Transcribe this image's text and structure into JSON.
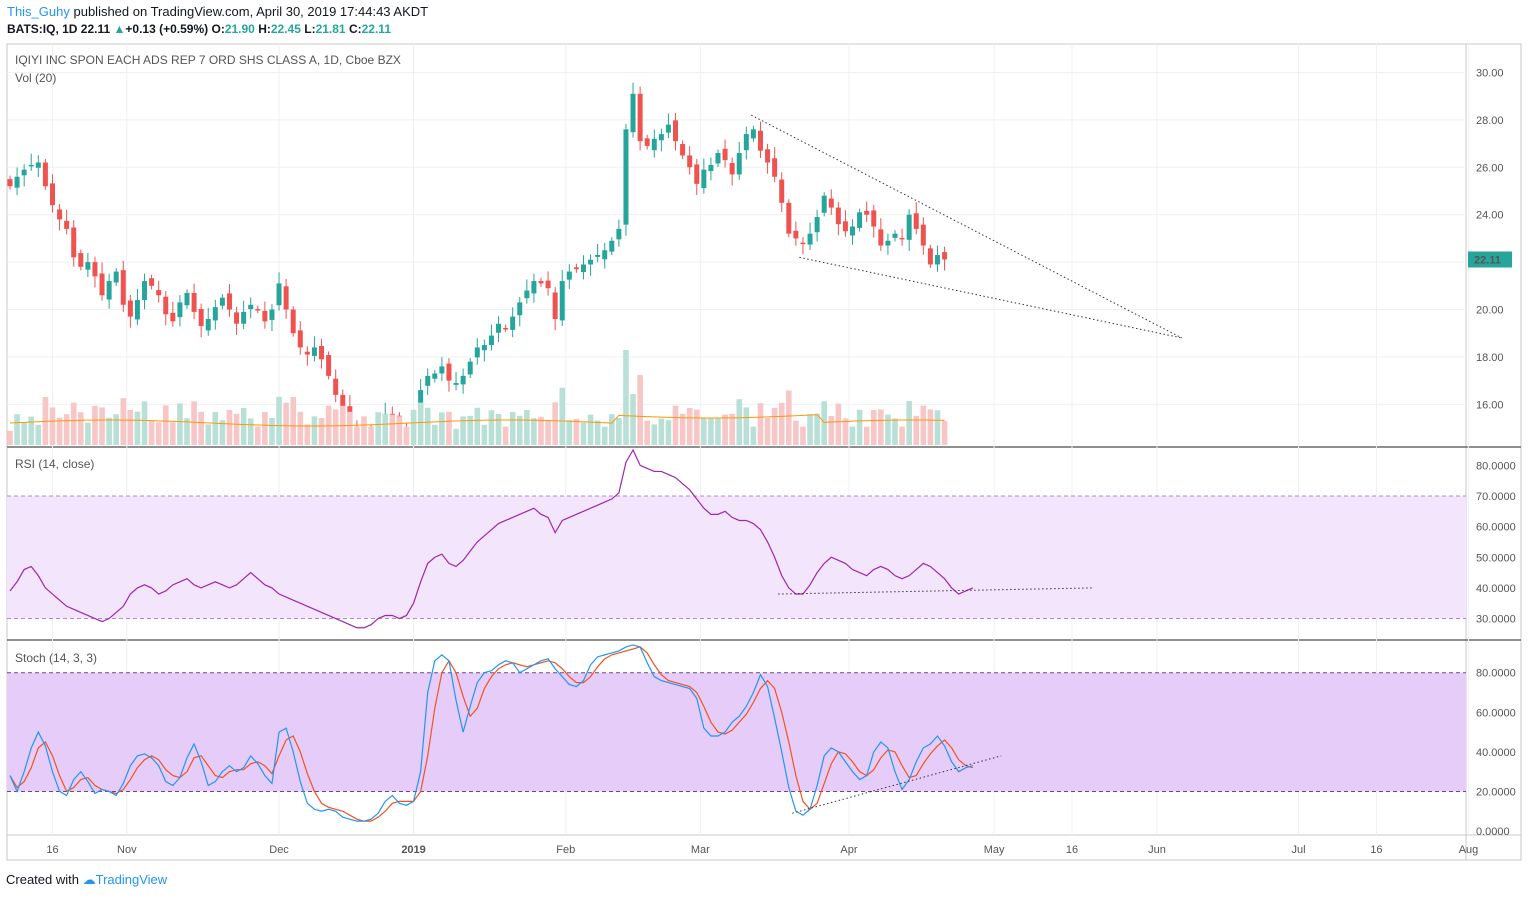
{
  "header": {
    "author": "This_Guhy",
    "published_text": " published on TradingView.com, April 30, 2019 17:44:43 AKDT",
    "symbol_line": "BATS:IQ, 1D",
    "last": "22.11",
    "change_arrow": "▲",
    "change": "+0.13 (+0.59%)",
    "o_label": "O:",
    "o": "21.90",
    "h_label": "H:",
    "h": "22.45",
    "l_label": "L:",
    "l": "21.81",
    "c_label": "C:",
    "c": "22.11"
  },
  "footer": {
    "created": "Created with",
    "brand": "TradingView"
  },
  "colors": {
    "up": "#26a69a",
    "down": "#ef5350",
    "up_vol": "#b9e0d6",
    "down_vol": "#f7c6c7",
    "rsi": "#9c27b0",
    "rsi_band": "#f3e5fb",
    "stoch_band": "#e6ccf8",
    "stoch_k": "#2196f3",
    "stoch_d": "#f4511e",
    "vol_ma": "#ff9800",
    "price_tag": "#26a69a"
  },
  "chart_data": [
    {
      "type": "candlestick",
      "title": "IQIYI INC SPON EACH ADS REP 7 ORD SHS CLASS A, 1D, Cboe BZX",
      "volume_title": "Vol (20)",
      "last_price_label": "22.11",
      "y_ticks": [
        "30.00",
        "28.00",
        "26.00",
        "24.00",
        "22.00",
        "20.00",
        "18.00",
        "16.00"
      ],
      "ylim": [
        14.2,
        31.2
      ],
      "x_ticks": [
        "16",
        "Nov",
        "Dec",
        "2019",
        "Feb",
        "Mar",
        "Apr",
        "May",
        "16",
        "Jun",
        "Jul",
        "16",
        "Aug"
      ],
      "x_tick_index": [
        6,
        16.5,
        38,
        57,
        78.5,
        97.5,
        118.5,
        139,
        150,
        162,
        182,
        193,
        206
      ],
      "close_series": [
        25.2,
        25.6,
        25.9,
        26.1,
        26.2,
        25.2,
        24.4,
        23.8,
        23.4,
        22.2,
        21.8,
        22.0,
        21.4,
        20.6,
        21.2,
        21.6,
        20.2,
        19.7,
        20.4,
        21.2,
        21.0,
        20.6,
        19.8,
        19.5,
        20.3,
        20.7,
        19.9,
        19.3,
        19.6,
        20.1,
        20.5,
        20.0,
        19.4,
        19.9,
        20.2,
        20.0,
        19.5,
        20.0,
        21.1,
        20.0,
        19.0,
        18.4,
        18.1,
        18.4,
        17.9,
        17.2,
        16.4,
        15.8,
        15.2,
        15.0,
        14.7,
        14.6,
        15.0,
        15.6,
        15.4,
        15.0,
        14.8,
        15.4,
        16.6,
        17.2,
        17.3,
        17.6,
        17.0,
        16.9,
        17.2,
        17.8,
        18.4,
        18.5,
        18.9,
        19.4,
        19.2,
        19.7,
        20.3,
        20.8,
        21.2,
        21.1,
        20.9,
        19.6,
        21.2,
        21.6,
        21.7,
        21.9,
        22.1,
        22.3,
        22.5,
        22.9,
        23.4,
        27.6,
        29.1,
        27.1,
        26.9,
        27.2,
        27.4,
        27.8,
        27.1,
        26.5,
        26.0,
        25.3,
        25.9,
        26.1,
        26.6,
        26.3,
        25.7,
        26.6,
        27.4,
        27.6,
        26.7,
        26.2,
        25.6,
        24.5,
        23.2,
        23.0,
        22.8,
        23.2,
        23.9,
        24.8,
        24.3,
        23.6,
        23.3,
        23.5,
        24.1,
        24.0,
        23.5,
        22.7,
        22.9,
        23.2,
        23.0,
        24.0,
        23.4,
        22.7,
        21.9,
        22.3,
        22.11
      ],
      "volume_ma20": 5,
      "drawn_trendlines": [
        "dotted upper line from Mar peak to ~18.8 in Jun",
        "dotted lower line from Apr low to ~18.8 in Jun"
      ]
    },
    {
      "type": "line",
      "title": "RSI (14, close)",
      "y_ticks": [
        "80.0000",
        "70.0000",
        "60.0000",
        "50.0000",
        "40.0000",
        "30.0000"
      ],
      "ylim": [
        23,
        85
      ],
      "band": [
        30,
        70
      ],
      "series": [
        {
          "values": [
            39,
            42,
            46,
            47,
            44,
            40,
            38,
            36,
            34,
            33,
            32,
            31,
            30,
            29,
            30,
            32,
            34,
            38,
            40,
            41,
            40,
            38,
            39,
            41,
            42,
            43,
            41,
            40,
            41,
            42,
            41,
            40,
            41,
            43,
            45,
            43,
            41,
            40,
            38,
            37,
            36,
            35,
            34,
            33,
            32,
            31,
            30,
            29,
            28,
            27,
            27,
            28,
            30,
            31,
            31,
            30,
            31,
            35,
            42,
            48,
            50,
            51,
            48,
            47,
            49,
            52,
            55,
            57,
            59,
            61,
            62,
            63,
            64,
            65,
            66,
            64,
            63,
            58,
            62,
            63,
            64,
            65,
            66,
            67,
            68,
            69,
            71,
            81,
            85,
            80,
            79,
            78,
            78,
            77,
            76,
            74,
            72,
            69,
            66,
            64,
            64,
            65,
            63,
            62,
            62,
            61,
            59,
            55,
            50,
            44,
            40,
            38,
            38,
            41,
            45,
            48,
            50,
            49,
            48,
            46,
            45,
            44,
            46,
            47,
            46,
            44,
            43,
            44,
            46,
            48,
            47,
            45,
            43,
            40,
            38,
            39,
            40
          ]
        }
      ],
      "trendline": "dotted horizontal support near 38-40"
    },
    {
      "type": "line",
      "title": "Stoch (14, 3, 3)",
      "y_ticks": [
        "80.0000",
        "60.0000",
        "40.0000",
        "20.0000",
        "0.0000"
      ],
      "ylim": [
        -2,
        95
      ],
      "band": [
        20,
        80
      ],
      "series": [
        {
          "values": [
            28,
            20,
            30,
            42,
            50,
            43,
            30,
            20,
            18,
            26,
            30,
            25,
            19,
            21,
            20,
            18,
            24,
            33,
            38,
            39,
            37,
            33,
            25,
            23,
            27,
            37,
            44,
            35,
            23,
            25,
            30,
            33,
            30,
            32,
            38,
            34,
            28,
            24,
            50,
            52,
            40,
            25,
            14,
            11,
            10,
            11,
            10,
            7,
            6,
            5,
            5,
            6,
            9,
            15,
            18,
            14,
            13,
            15,
            30,
            70,
            86,
            89,
            86,
            66,
            50,
            63,
            75,
            80,
            81,
            84,
            86,
            85,
            80,
            82,
            84,
            86,
            87,
            82,
            78,
            74,
            73,
            76,
            84,
            88,
            89,
            90,
            91,
            93,
            94,
            93,
            85,
            78,
            76,
            75,
            74,
            73,
            72,
            67,
            52,
            48,
            48,
            50,
            55,
            58,
            63,
            70,
            79,
            73,
            57,
            40,
            22,
            10,
            8,
            11,
            23,
            38,
            42,
            40,
            35,
            30,
            26,
            28,
            40,
            45,
            42,
            30,
            21,
            26,
            35,
            42,
            44,
            48,
            43,
            35,
            30,
            32,
            33
          ]
        },
        {
          "values": [
            28,
            22,
            25,
            32,
            42,
            45,
            38,
            28,
            20,
            22,
            26,
            27,
            23,
            21,
            20,
            19,
            21,
            26,
            32,
            36,
            38,
            36,
            31,
            28,
            27,
            30,
            37,
            38,
            33,
            28,
            27,
            30,
            31,
            31,
            34,
            35,
            33,
            29,
            38,
            46,
            48,
            40,
            29,
            20,
            14,
            12,
            11,
            10,
            8,
            6,
            5,
            5,
            7,
            10,
            14,
            15,
            15,
            15,
            20,
            38,
            62,
            80,
            86,
            80,
            68,
            58,
            62,
            72,
            78,
            82,
            84,
            85,
            84,
            83,
            84,
            85,
            86,
            85,
            82,
            78,
            75,
            75,
            78,
            83,
            87,
            89,
            90,
            91,
            92,
            93,
            90,
            84,
            79,
            76,
            75,
            74,
            73,
            70,
            63,
            55,
            50,
            49,
            51,
            55,
            59,
            65,
            72,
            76,
            72,
            60,
            45,
            28,
            15,
            11,
            14,
            24,
            34,
            40,
            39,
            35,
            30,
            28,
            31,
            37,
            41,
            40,
            33,
            27,
            28,
            34,
            39,
            43,
            46,
            42,
            36,
            33,
            32
          ]
        }
      ],
      "trendline": "dotted rising support from ~10 to ~38"
    }
  ]
}
